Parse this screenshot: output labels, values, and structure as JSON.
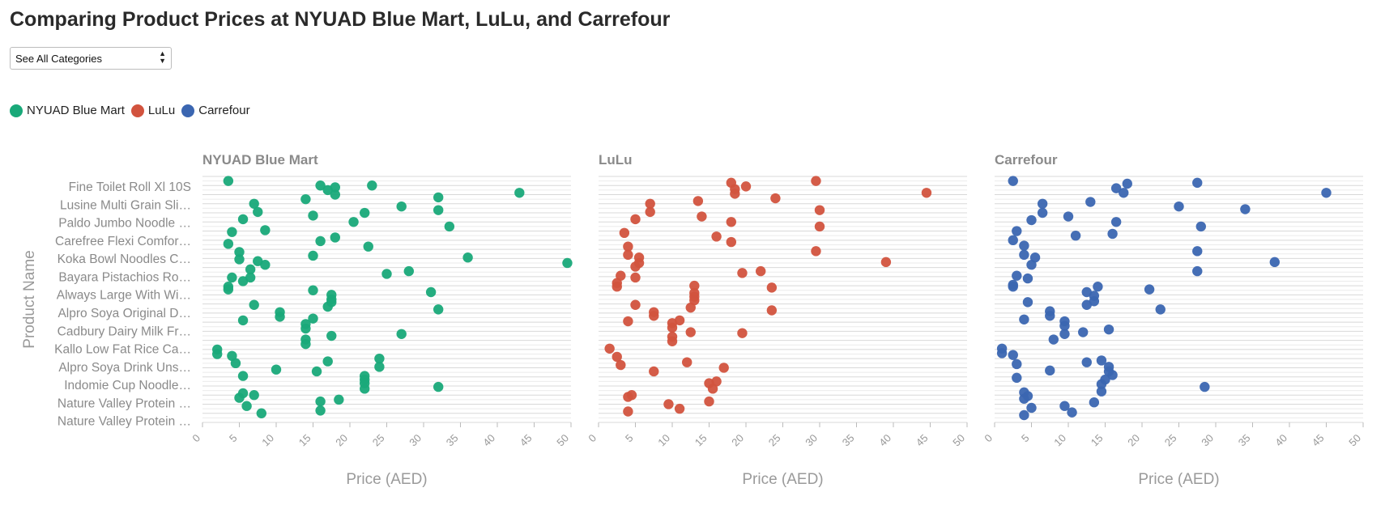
{
  "page": {
    "title": "Comparing Product Prices at NYUAD Blue Mart, LuLu, and Carrefour",
    "category_select": {
      "value": "See All Categories"
    },
    "legend": [
      {
        "label": "NYUAD Blue Mart",
        "color": "#19a979"
      },
      {
        "label": "LuLu",
        "color": "#d2533e"
      },
      {
        "label": "Carrefour",
        "color": "#3b66b1"
      }
    ]
  },
  "chart_data": {
    "type": "scatter",
    "x_label": "Price (AED)",
    "y_label": "Product Name",
    "x_range": [
      0,
      50
    ],
    "x_ticks": [
      0,
      5,
      10,
      15,
      20,
      25,
      30,
      35,
      40,
      45,
      50
    ],
    "grid": "horizontal lines per product row",
    "y_tick_labels": [
      "Fine Toilet Roll Xl 10S",
      "Lusine Multi Grain Sli…",
      "Paldo Jumbo Noodle …",
      "Carefree Flexi Comfor…",
      "Koka Bowl Noodles C…",
      "Bayara Pistachios Ro…",
      "Always Large With Wi…",
      "Alpro Soya Original D…",
      "Cadbury Dairy Milk Fr…",
      "Kallo Low Fat Rice Ca…",
      "Alpro Soya Drink Uns…",
      "Indomie Cup Noodle…",
      "Nature Valley Protein …",
      "Nature Valley Protein …"
    ],
    "row_count": 27,
    "panels": [
      {
        "name": "NYUAD Blue Mart",
        "color": "#19a979",
        "points": [
          [
            3.5,
            0
          ],
          [
            16,
            0.5
          ],
          [
            17,
            1
          ],
          [
            18,
            0.7
          ],
          [
            18,
            1.5
          ],
          [
            23,
            0.5
          ],
          [
            43,
            1.3
          ],
          [
            14,
            2
          ],
          [
            32,
            1.8
          ],
          [
            7,
            2.5
          ],
          [
            27,
            2.8
          ],
          [
            32,
            3.2
          ],
          [
            7.5,
            3.4
          ],
          [
            15,
            3.8
          ],
          [
            22,
            3.5
          ],
          [
            5.5,
            4.2
          ],
          [
            20.5,
            4.5
          ],
          [
            33.5,
            5
          ],
          [
            8.5,
            5.4
          ],
          [
            4,
            5.6
          ],
          [
            16,
            6.6
          ],
          [
            18,
            6.2
          ],
          [
            3.5,
            6.9
          ],
          [
            22.5,
            7.2
          ],
          [
            5,
            7.8
          ],
          [
            36,
            8.4
          ],
          [
            7.5,
            8.8
          ],
          [
            8.5,
            9.2
          ],
          [
            5,
            8.6
          ],
          [
            15,
            8.2
          ],
          [
            49.5,
            9
          ],
          [
            6.5,
            9.7
          ],
          [
            25,
            10.2
          ],
          [
            28,
            9.9
          ],
          [
            4,
            10.6
          ],
          [
            5.5,
            11
          ],
          [
            6.5,
            10.6
          ],
          [
            3.5,
            11.6
          ],
          [
            3.5,
            11.9
          ],
          [
            15,
            12
          ],
          [
            17.5,
            12.5
          ],
          [
            17.5,
            13
          ],
          [
            31,
            12.2
          ],
          [
            7,
            13.6
          ],
          [
            17,
            13.8
          ],
          [
            17.5,
            13.3
          ],
          [
            32,
            14.1
          ],
          [
            10.5,
            14.4
          ],
          [
            10.5,
            14.9
          ],
          [
            15,
            15.1
          ],
          [
            5.5,
            15.3
          ],
          [
            14,
            15.7
          ],
          [
            14,
            16.2
          ],
          [
            27,
            16.8
          ],
          [
            17.5,
            17
          ],
          [
            14,
            17.4
          ],
          [
            14,
            17.9
          ],
          [
            2,
            18.5
          ],
          [
            2,
            19
          ],
          [
            4,
            19.2
          ],
          [
            4.5,
            20
          ],
          [
            17,
            19.8
          ],
          [
            24,
            19.5
          ],
          [
            24,
            20.4
          ],
          [
            10,
            20.7
          ],
          [
            15.5,
            20.9
          ],
          [
            5.5,
            21.4
          ],
          [
            22,
            21.4
          ],
          [
            22,
            21.8
          ],
          [
            22,
            22.2
          ],
          [
            32,
            22.6
          ],
          [
            5.5,
            23.3
          ],
          [
            7,
            23.5
          ],
          [
            5,
            23.8
          ],
          [
            22,
            22.8
          ],
          [
            18.5,
            24
          ],
          [
            16,
            24.2
          ],
          [
            6,
            24.7
          ],
          [
            16,
            25.2
          ],
          [
            8,
            25.5
          ]
        ]
      },
      {
        "name": "LuLu",
        "color": "#d2533e",
        "points": [
          [
            18,
            0.2
          ],
          [
            20,
            0.6
          ],
          [
            18.5,
            0.9
          ],
          [
            29.5,
            0
          ],
          [
            18.5,
            1.4
          ],
          [
            44.5,
            1.3
          ],
          [
            24,
            1.9
          ],
          [
            13.5,
            2.2
          ],
          [
            7,
            2.5
          ],
          [
            30,
            3.2
          ],
          [
            7,
            3.4
          ],
          [
            14,
            3.9
          ],
          [
            5,
            4.2
          ],
          [
            18,
            4.5
          ],
          [
            30,
            5
          ],
          [
            3.5,
            5.7
          ],
          [
            16,
            6.1
          ],
          [
            18,
            6.7
          ],
          [
            4,
            7.2
          ],
          [
            29.5,
            7.7
          ],
          [
            4,
            8.1
          ],
          [
            5.5,
            8.4
          ],
          [
            39,
            8.9
          ],
          [
            5.5,
            9
          ],
          [
            5,
            9.4
          ],
          [
            22,
            9.9
          ],
          [
            19.5,
            10.1
          ],
          [
            3,
            10.4
          ],
          [
            5,
            10.6
          ],
          [
            2.5,
            11.2
          ],
          [
            2.5,
            11.6
          ],
          [
            13,
            11.5
          ],
          [
            23.5,
            11.7
          ],
          [
            13,
            12.3
          ],
          [
            13,
            12.7
          ],
          [
            13,
            13.1
          ],
          [
            5,
            13.6
          ],
          [
            12.5,
            13.9
          ],
          [
            23.5,
            14.2
          ],
          [
            7.5,
            14.4
          ],
          [
            7.5,
            14.8
          ],
          [
            11,
            15.3
          ],
          [
            4,
            15.4
          ],
          [
            10,
            15.6
          ],
          [
            10,
            16.1
          ],
          [
            12.5,
            16.6
          ],
          [
            19.5,
            16.7
          ],
          [
            10,
            17.1
          ],
          [
            10,
            17.6
          ],
          [
            1.5,
            18.4
          ],
          [
            2.5,
            19.3
          ],
          [
            12,
            19.9
          ],
          [
            3,
            20.2
          ],
          [
            17,
            20.5
          ],
          [
            7.5,
            20.9
          ],
          [
            16,
            22
          ],
          [
            15,
            22.2
          ],
          [
            15.5,
            22.8
          ],
          [
            4.5,
            23.5
          ],
          [
            4,
            23.7
          ],
          [
            15,
            24.2
          ],
          [
            9.5,
            24.5
          ],
          [
            11,
            25
          ],
          [
            4,
            25.3
          ]
        ]
      },
      {
        "name": "Carrefour",
        "color": "#3b66b1",
        "points": [
          [
            2.5,
            0
          ],
          [
            18,
            0.3
          ],
          [
            27.5,
            0.2
          ],
          [
            16.5,
            0.8
          ],
          [
            17.5,
            1.3
          ],
          [
            45,
            1.3
          ],
          [
            13,
            2.3
          ],
          [
            25,
            2.8
          ],
          [
            6.5,
            2.5
          ],
          [
            34,
            3.1
          ],
          [
            6.5,
            3.5
          ],
          [
            10,
            3.9
          ],
          [
            5,
            4.3
          ],
          [
            16.5,
            4.5
          ],
          [
            28,
            5
          ],
          [
            3,
            5.5
          ],
          [
            11,
            6
          ],
          [
            16,
            5.8
          ],
          [
            2.5,
            6.5
          ],
          [
            4,
            7.1
          ],
          [
            27.5,
            7.7
          ],
          [
            4,
            8.1
          ],
          [
            5.5,
            8.4
          ],
          [
            38,
            8.9
          ],
          [
            5,
            9.2
          ],
          [
            27.5,
            9.9
          ],
          [
            3,
            10.4
          ],
          [
            4.5,
            10.7
          ],
          [
            2.5,
            11.4
          ],
          [
            2.5,
            11.6
          ],
          [
            14,
            11.6
          ],
          [
            21,
            11.9
          ],
          [
            12.5,
            12.2
          ],
          [
            13.5,
            12.6
          ],
          [
            13.5,
            13.2
          ],
          [
            12.5,
            13.6
          ],
          [
            4.5,
            13.3
          ],
          [
            22.5,
            14.1
          ],
          [
            7.5,
            14.3
          ],
          [
            7.5,
            14.8
          ],
          [
            4,
            15.2
          ],
          [
            9.5,
            15.4
          ],
          [
            9.5,
            15.9
          ],
          [
            15.5,
            16.3
          ],
          [
            12,
            16.6
          ],
          [
            9.5,
            16.8
          ],
          [
            8,
            17.4
          ],
          [
            1,
            18.4
          ],
          [
            1,
            18.9
          ],
          [
            2.5,
            19.1
          ],
          [
            3,
            20.1
          ],
          [
            12.5,
            19.9
          ],
          [
            14.5,
            19.7
          ],
          [
            15.5,
            20.4
          ],
          [
            15.5,
            20.9
          ],
          [
            16,
            21.3
          ],
          [
            15,
            21.8
          ],
          [
            3,
            21.6
          ],
          [
            7.5,
            20.8
          ],
          [
            14.5,
            22.3
          ],
          [
            28.5,
            22.6
          ],
          [
            14.5,
            23.1
          ],
          [
            4,
            23.2
          ],
          [
            4.5,
            23.6
          ],
          [
            4,
            23.9
          ],
          [
            13.5,
            24.3
          ],
          [
            9.5,
            24.7
          ],
          [
            5,
            24.9
          ],
          [
            10.5,
            25.4
          ],
          [
            4,
            25.7
          ]
        ]
      }
    ]
  }
}
